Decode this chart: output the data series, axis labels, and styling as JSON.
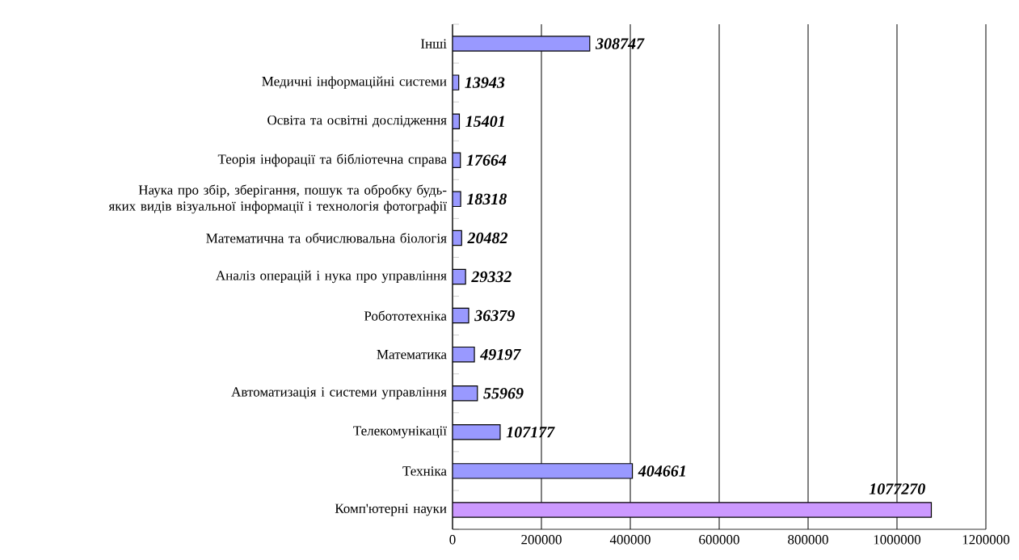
{
  "chart_data": {
    "type": "bar",
    "orientation": "horizontal",
    "categories": [
      "Інші",
      "Медичні інформаційні системи",
      "Освіта та освітні дослідження",
      "Теорія інфорації та бібліотечна справа",
      "Наука про збір, зберігання, пошук та обробку будь-яких видів візуальної інформації і технологія фотографії",
      "Математична та обчислювальна біологія",
      "Аналіз операцій і нука про управління",
      "Робототехніка",
      "Математика",
      "Автоматизація і системи управління",
      "Телекомунікації",
      "Техніка",
      "Комп'ютерні науки"
    ],
    "values": [
      308747,
      13943,
      15401,
      17664,
      18318,
      20482,
      29332,
      36379,
      49197,
      55969,
      107177,
      404661,
      1077270
    ],
    "colors": [
      "#9999ff",
      "#9999ff",
      "#9999ff",
      "#9999ff",
      "#9999ff",
      "#9999ff",
      "#9999ff",
      "#9999ff",
      "#9999ff",
      "#9999ff",
      "#9999ff",
      "#9999ff",
      "#cc99ff"
    ],
    "xlim": [
      0,
      1200000
    ],
    "xticks": [
      0,
      200000,
      400000,
      600000,
      800000,
      1000000,
      1200000
    ],
    "grid": "x",
    "data_labels": true
  }
}
